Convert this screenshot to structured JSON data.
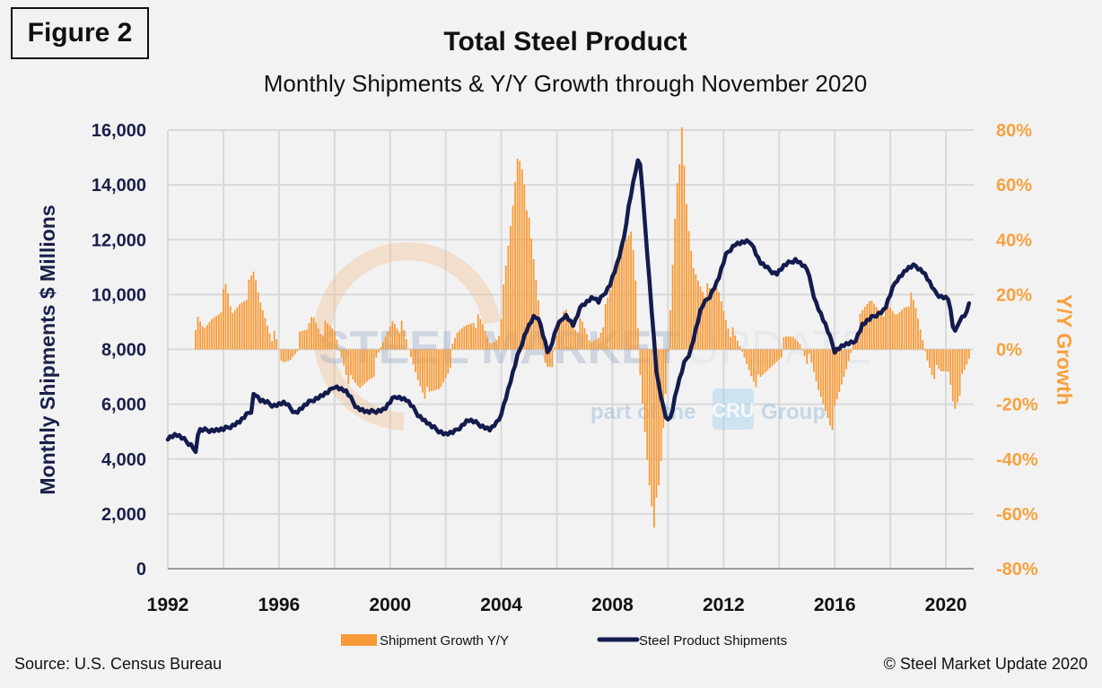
{
  "figure_label": "Figure 2",
  "source": "Source: U.S. Census Bureau",
  "copyright": "© Steel Market Update 2020",
  "watermark": {
    "brand_bold": "STEEL MARKET",
    "brand_light": "UPDATE",
    "tagline_pre": "part of the",
    "tagline_logo": "CRU",
    "tagline_post": "Group"
  },
  "colors": {
    "line": "#141b4d",
    "bars": "#f79b38",
    "grid": "#d9d9d9",
    "left_axis": "#1a1f4a",
    "right_axis": "#f7a13e"
  },
  "chart_data": {
    "type": "bar+line",
    "title": "Total Steel Product",
    "subtitle": "Monthly Shipments & Y/Y Growth through November 2020",
    "xlabel": "",
    "ylabel": "Monthly Shipments $ Millions",
    "y2label": "Y/Y Growth",
    "x_range": [
      1992,
      2021
    ],
    "x_ticks": [
      "1992",
      "1996",
      "2000",
      "2004",
      "2008",
      "2012",
      "2016",
      "2020"
    ],
    "ylim": [
      0,
      16000
    ],
    "y_ticks": [
      "0",
      "2,000",
      "4,000",
      "6,000",
      "8,000",
      "10,000",
      "12,000",
      "14,000",
      "16,000"
    ],
    "y2lim": [
      -80,
      80
    ],
    "y2_ticks": [
      "-80%",
      "-60%",
      "-40%",
      "-20%",
      "0%",
      "20%",
      "40%",
      "60%",
      "80%"
    ],
    "grid": true,
    "legend_position": "bottom",
    "legend": [
      "Shipment Growth Y/Y",
      "Steel Product Shipments"
    ],
    "series": [
      {
        "name": "Steel Product Shipments",
        "type": "line",
        "axis": "left",
        "unit": "$ millions",
        "points": [
          [
            1992.0,
            4780
          ],
          [
            1992.3,
            4900
          ],
          [
            1992.9,
            4480
          ],
          [
            1993.0,
            4220
          ],
          [
            1993.1,
            5040
          ],
          [
            1994.0,
            5070
          ],
          [
            1994.6,
            5370
          ],
          [
            1995.0,
            5760
          ],
          [
            1995.1,
            6480
          ],
          [
            1995.3,
            6150
          ],
          [
            1995.8,
            5960
          ],
          [
            1996.2,
            6050
          ],
          [
            1996.6,
            5690
          ],
          [
            1997.2,
            6150
          ],
          [
            1997.8,
            6440
          ],
          [
            1998.0,
            6670
          ],
          [
            1998.4,
            6480
          ],
          [
            1998.8,
            5890
          ],
          [
            1999.2,
            5690
          ],
          [
            1999.8,
            5820
          ],
          [
            2000.2,
            6310
          ],
          [
            2000.6,
            6150
          ],
          [
            2001.0,
            5630
          ],
          [
            2001.5,
            5170
          ],
          [
            2002.0,
            4910
          ],
          [
            2002.3,
            4970
          ],
          [
            2002.8,
            5430
          ],
          [
            2003.2,
            5270
          ],
          [
            2003.6,
            5070
          ],
          [
            2003.9,
            5370
          ],
          [
            2004.2,
            6350
          ],
          [
            2004.6,
            7790
          ],
          [
            2004.9,
            8700
          ],
          [
            2005.2,
            9230
          ],
          [
            2005.4,
            8960
          ],
          [
            2005.7,
            7820
          ],
          [
            2006.0,
            8800
          ],
          [
            2006.3,
            9290
          ],
          [
            2006.6,
            8870
          ],
          [
            2006.9,
            9620
          ],
          [
            2007.3,
            9910
          ],
          [
            2007.5,
            9720
          ],
          [
            2007.9,
            10340
          ],
          [
            2008.2,
            11190
          ],
          [
            2008.4,
            11980
          ],
          [
            2008.6,
            13320
          ],
          [
            2008.9,
            14860
          ],
          [
            2009.0,
            14760
          ],
          [
            2009.3,
            10930
          ],
          [
            2009.6,
            7000
          ],
          [
            2009.9,
            5530
          ],
          [
            2010.1,
            5500
          ],
          [
            2010.3,
            6510
          ],
          [
            2010.6,
            7530
          ],
          [
            2010.8,
            7920
          ],
          [
            2011.2,
            9520
          ],
          [
            2011.5,
            9950
          ],
          [
            2011.8,
            10530
          ],
          [
            2012.1,
            11480
          ],
          [
            2012.4,
            11840
          ],
          [
            2012.8,
            11910
          ],
          [
            2013.0,
            11910
          ],
          [
            2013.3,
            11190
          ],
          [
            2013.6,
            10930
          ],
          [
            2013.9,
            10760
          ],
          [
            2014.2,
            11060
          ],
          [
            2014.6,
            11290
          ],
          [
            2015.0,
            10930
          ],
          [
            2015.3,
            9780
          ],
          [
            2015.7,
            8800
          ],
          [
            2016.0,
            7950
          ],
          [
            2016.3,
            8150
          ],
          [
            2016.7,
            8250
          ],
          [
            2017.0,
            8900
          ],
          [
            2017.4,
            9200
          ],
          [
            2017.8,
            9460
          ],
          [
            2018.2,
            10510
          ],
          [
            2018.6,
            10930
          ],
          [
            2018.9,
            11060
          ],
          [
            2019.2,
            10830
          ],
          [
            2019.6,
            10080
          ],
          [
            2019.8,
            9950
          ],
          [
            2020.1,
            9850
          ],
          [
            2020.3,
            8510
          ],
          [
            2020.5,
            9100
          ],
          [
            2020.8,
            9390
          ],
          [
            2020.85,
            9880
          ]
        ]
      },
      {
        "name": "Shipment Growth Y/Y",
        "type": "bar",
        "axis": "right",
        "unit": "%",
        "points": [
          [
            1993.0,
            10
          ],
          [
            1993.3,
            6
          ],
          [
            1993.6,
            12
          ],
          [
            1993.9,
            16
          ],
          [
            1994.1,
            22
          ],
          [
            1994.3,
            12
          ],
          [
            1994.6,
            18
          ],
          [
            1994.9,
            22
          ],
          [
            1995.1,
            27
          ],
          [
            1995.3,
            18
          ],
          [
            1995.6,
            10
          ],
          [
            1995.9,
            2
          ],
          [
            1996.1,
            -6
          ],
          [
            1996.4,
            -3
          ],
          [
            1996.7,
            3
          ],
          [
            1997.0,
            6
          ],
          [
            1997.2,
            13
          ],
          [
            1997.5,
            8
          ],
          [
            1997.8,
            7
          ],
          [
            1998.0,
            6
          ],
          [
            1998.3,
            -3
          ],
          [
            1998.6,
            -13
          ],
          [
            1998.9,
            -15
          ],
          [
            1999.2,
            -10
          ],
          [
            1999.5,
            -6
          ],
          [
            1999.8,
            3
          ],
          [
            2000.1,
            12
          ],
          [
            2000.4,
            8
          ],
          [
            2000.7,
            -2
          ],
          [
            2001.0,
            -10
          ],
          [
            2001.4,
            -18
          ],
          [
            2001.8,
            -14
          ],
          [
            2002.1,
            -6
          ],
          [
            2002.4,
            4
          ],
          [
            2002.7,
            9
          ],
          [
            2003.0,
            12
          ],
          [
            2003.3,
            8
          ],
          [
            2003.6,
            2
          ],
          [
            2003.9,
            6
          ],
          [
            2004.1,
            22
          ],
          [
            2004.4,
            50
          ],
          [
            2004.6,
            72
          ],
          [
            2004.8,
            66
          ],
          [
            2005.0,
            45
          ],
          [
            2005.3,
            20
          ],
          [
            2005.6,
            -5
          ],
          [
            2005.9,
            -3
          ],
          [
            2006.1,
            8
          ],
          [
            2006.3,
            15
          ],
          [
            2006.6,
            10
          ],
          [
            2006.9,
            8
          ],
          [
            2007.2,
            2
          ],
          [
            2007.5,
            6
          ],
          [
            2007.8,
            15
          ],
          [
            2008.1,
            28
          ],
          [
            2008.4,
            40
          ],
          [
            2008.6,
            45
          ],
          [
            2008.8,
            30
          ],
          [
            2009.0,
            -10
          ],
          [
            2009.3,
            -45
          ],
          [
            2009.5,
            -62
          ],
          [
            2009.7,
            -50
          ],
          [
            2009.9,
            -20
          ],
          [
            2010.1,
            18
          ],
          [
            2010.3,
            60
          ],
          [
            2010.5,
            78
          ],
          [
            2010.7,
            46
          ],
          [
            2010.9,
            30
          ],
          [
            2011.2,
            24
          ],
          [
            2011.5,
            20
          ],
          [
            2011.8,
            22
          ],
          [
            2012.1,
            12
          ],
          [
            2012.4,
            3
          ],
          [
            2012.7,
            -2
          ],
          [
            2013.0,
            -8
          ],
          [
            2013.3,
            -13
          ],
          [
            2013.6,
            -8
          ],
          [
            2013.9,
            -3
          ],
          [
            2014.2,
            2
          ],
          [
            2014.5,
            4
          ],
          [
            2014.8,
            3
          ],
          [
            2015.1,
            -5
          ],
          [
            2015.4,
            -15
          ],
          [
            2015.7,
            -22
          ],
          [
            2015.9,
            -27
          ],
          [
            2016.1,
            -20
          ],
          [
            2016.4,
            -8
          ],
          [
            2016.7,
            5
          ],
          [
            2017.0,
            12
          ],
          [
            2017.3,
            18
          ],
          [
            2017.6,
            16
          ],
          [
            2017.9,
            14
          ],
          [
            2018.2,
            12
          ],
          [
            2018.5,
            17
          ],
          [
            2018.7,
            19
          ],
          [
            2018.9,
            14
          ],
          [
            2019.1,
            6
          ],
          [
            2019.3,
            -2
          ],
          [
            2019.5,
            -7
          ],
          [
            2019.8,
            -10
          ],
          [
            2020.1,
            -8
          ],
          [
            2020.3,
            -21
          ],
          [
            2020.5,
            -14
          ],
          [
            2020.7,
            -9
          ],
          [
            2020.85,
            -4
          ]
        ]
      }
    ]
  }
}
